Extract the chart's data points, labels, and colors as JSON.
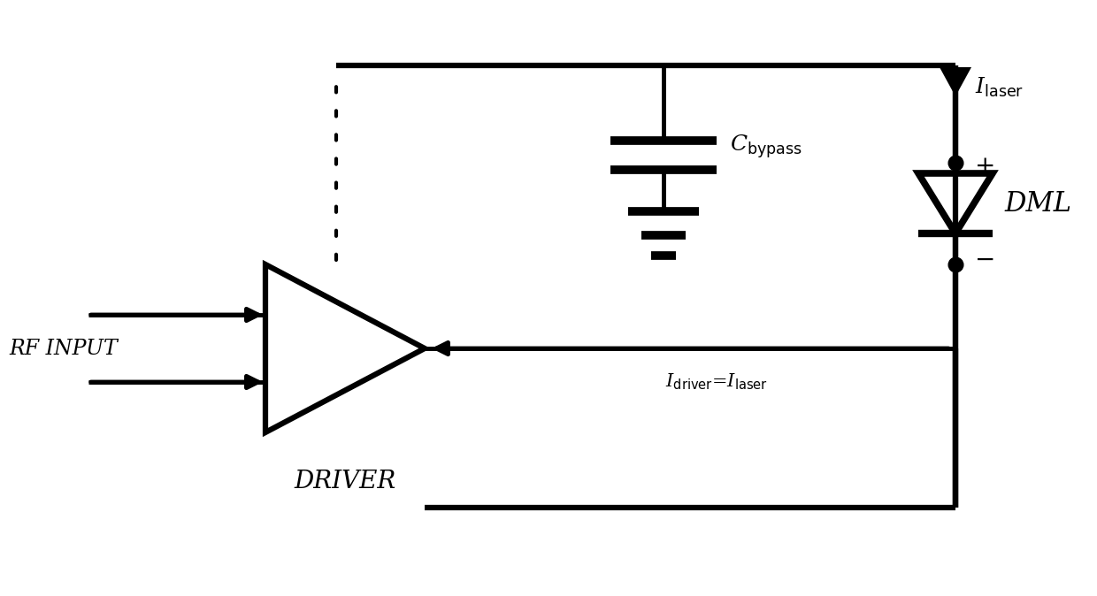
{
  "background_color": "#ffffff",
  "line_color": "#000000",
  "line_width": 3.0,
  "fig_width": 12.4,
  "fig_height": 6.74,
  "dpi": 100,
  "rf_input_label": "RF INPUT",
  "driver_label": "DRIVER",
  "dml_label": "DML",
  "ilaser_label": "I$_\\mathrm{laser}$",
  "idriver_label": "I$_\\mathrm{driver}$=I$_\\mathrm{laser}$",
  "cbypass_label": "C$_\\mathrm{bypass}$",
  "plus_label": "+",
  "minus_label": "−"
}
